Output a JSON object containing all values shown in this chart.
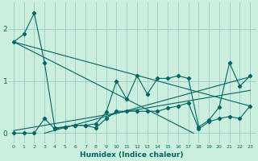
{
  "xlabel": "Humidex (Indice chaleur)",
  "bg_color": "#cceedd",
  "line_color": "#006666",
  "grid_color": "#99cccc",
  "xlim": [
    -0.5,
    23.5
  ],
  "ylim": [
    -0.2,
    2.5
  ],
  "yticks": [
    0,
    1,
    2
  ],
  "xticks": [
    0,
    1,
    2,
    3,
    4,
    5,
    6,
    7,
    8,
    9,
    10,
    11,
    12,
    13,
    14,
    15,
    16,
    17,
    18,
    19,
    20,
    21,
    22,
    23
  ],
  "s1": [
    1.75,
    1.9,
    2.3,
    1.35,
    0.1,
    0.12,
    0.15,
    0.15,
    0.18,
    0.4,
    1.0,
    0.65,
    1.1,
    0.75,
    1.05,
    1.05,
    1.1,
    1.05,
    0.12,
    0.25,
    0.5,
    1.35,
    0.9,
    1.1
  ],
  "s2": [
    0.0,
    0.0,
    0.0,
    0.28,
    0.08,
    0.12,
    0.15,
    0.15,
    0.1,
    0.28,
    0.42,
    0.42,
    0.42,
    0.42,
    0.42,
    0.48,
    0.52,
    0.58,
    0.08,
    0.22,
    0.28,
    0.32,
    0.28,
    0.52
  ],
  "t1x": [
    0,
    23
  ],
  "t1y": [
    1.75,
    0.52
  ],
  "t2x": [
    0,
    23
  ],
  "t2y": [
    0.05,
    0.82
  ],
  "t3x": [
    0,
    17.5
  ],
  "t3y": [
    1.75,
    0.0
  ],
  "t4x": [
    3,
    23
  ],
  "t4y": [
    0.0,
    1.08
  ]
}
